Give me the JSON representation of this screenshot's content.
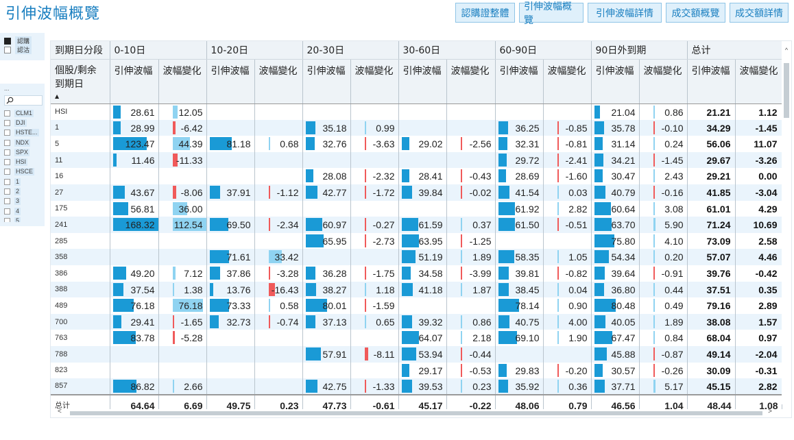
{
  "title": "引伸波幅概覽",
  "nav_buttons": [
    "認購證整體",
    "引伸波幅概覽",
    "引伸波幅詳情",
    "成交額概覽",
    "成交額詳情"
  ],
  "legend": [
    {
      "label": "認購",
      "checked": true
    },
    {
      "label": "認沽",
      "checked": false
    }
  ],
  "filter": {
    "dots": "...",
    "items": [
      "CLM1",
      "DJI",
      "HSTE...",
      "NDX",
      "SPX",
      "HSI",
      "HSCE",
      "1",
      "2",
      "3",
      "4",
      "5"
    ]
  },
  "table": {
    "corner_label": "到期日分段",
    "row_header_label": "個股/剩余\n到期日",
    "groups": [
      "0-10日",
      "10-20日",
      "20-30日",
      "30-60日",
      "60-90日",
      "90日外到期",
      "总计"
    ],
    "sub_headers": [
      "引伸波幅",
      "波幅變化"
    ],
    "rows": [
      {
        "key": "HSI",
        "cells": [
          [
            "28.61",
            "12.05"
          ],
          [
            "",
            ""
          ],
          [
            "",
            ""
          ],
          [
            "",
            ""
          ],
          [
            "",
            ""
          ],
          [
            "21.04",
            "0.86"
          ]
        ],
        "total": [
          "21.21",
          "1.12"
        ]
      },
      {
        "key": "1",
        "cells": [
          [
            "28.99",
            "-6.42"
          ],
          [
            "",
            ""
          ],
          [
            "35.18",
            "0.99"
          ],
          [
            "",
            ""
          ],
          [
            "36.25",
            "-0.85"
          ],
          [
            "35.78",
            "-0.10"
          ]
        ],
        "total": [
          "34.29",
          "-1.45"
        ]
      },
      {
        "key": "5",
        "cells": [
          [
            "123.47",
            "44.39"
          ],
          [
            "81.18",
            "0.68"
          ],
          [
            "32.76",
            "-3.63"
          ],
          [
            "29.02",
            "-2.56"
          ],
          [
            "32.31",
            "-0.81"
          ],
          [
            "31.14",
            "0.24"
          ]
        ],
        "total": [
          "56.06",
          "11.07"
        ]
      },
      {
        "key": "11",
        "cells": [
          [
            "11.46",
            "-11.33"
          ],
          [
            "",
            ""
          ],
          [
            "",
            ""
          ],
          [
            "",
            ""
          ],
          [
            "29.72",
            "-2.41"
          ],
          [
            "34.21",
            "-1.45"
          ]
        ],
        "total": [
          "29.67",
          "-3.26"
        ]
      },
      {
        "key": "16",
        "cells": [
          [
            "",
            ""
          ],
          [
            "",
            ""
          ],
          [
            "28.08",
            "-2.32"
          ],
          [
            "28.41",
            "-0.43"
          ],
          [
            "28.69",
            "-1.60"
          ],
          [
            "30.47",
            "2.43"
          ]
        ],
        "total": [
          "29.21",
          "0.00"
        ]
      },
      {
        "key": "27",
        "cells": [
          [
            "43.67",
            "-8.06"
          ],
          [
            "37.91",
            "-1.12"
          ],
          [
            "42.77",
            "-1.72"
          ],
          [
            "39.84",
            "-0.02"
          ],
          [
            "41.54",
            "0.03"
          ],
          [
            "40.79",
            "-0.16"
          ]
        ],
        "total": [
          "41.85",
          "-3.04"
        ]
      },
      {
        "key": "175",
        "cells": [
          [
            "56.81",
            "36.00"
          ],
          [
            "",
            ""
          ],
          [
            "",
            ""
          ],
          [
            "",
            ""
          ],
          [
            "61.92",
            "2.82"
          ],
          [
            "60.64",
            "3.08"
          ]
        ],
        "total": [
          "61.01",
          "4.29"
        ]
      },
      {
        "key": "241",
        "cells": [
          [
            "168.32",
            "112.54"
          ],
          [
            "69.50",
            "-2.34"
          ],
          [
            "60.97",
            "-0.27"
          ],
          [
            "61.59",
            "0.37"
          ],
          [
            "61.50",
            "-0.51"
          ],
          [
            "63.70",
            "5.90"
          ]
        ],
        "total": [
          "71.24",
          "10.69"
        ]
      },
      {
        "key": "285",
        "cells": [
          [
            "",
            ""
          ],
          [
            "",
            ""
          ],
          [
            "65.95",
            "-2.73"
          ],
          [
            "63.95",
            "-1.25"
          ],
          [
            "",
            ""
          ],
          [
            "75.80",
            "4.10"
          ]
        ],
        "total": [
          "73.09",
          "2.58"
        ]
      },
      {
        "key": "358",
        "cells": [
          [
            "",
            ""
          ],
          [
            "71.61",
            "33.42"
          ],
          [
            "",
            ""
          ],
          [
            "51.19",
            "1.89"
          ],
          [
            "58.35",
            "1.05"
          ],
          [
            "54.34",
            "0.20"
          ]
        ],
        "total": [
          "57.07",
          "4.46"
        ]
      },
      {
        "key": "386",
        "cells": [
          [
            "49.20",
            "7.12"
          ],
          [
            "37.86",
            "-3.28"
          ],
          [
            "36.28",
            "-1.75"
          ],
          [
            "34.58",
            "-3.99"
          ],
          [
            "39.81",
            "-0.82"
          ],
          [
            "39.64",
            "-0.91"
          ]
        ],
        "total": [
          "39.76",
          "-0.42"
        ]
      },
      {
        "key": "388",
        "cells": [
          [
            "37.54",
            "1.38"
          ],
          [
            "13.76",
            "-16.43"
          ],
          [
            "38.27",
            "1.18"
          ],
          [
            "41.18",
            "1.87"
          ],
          [
            "38.45",
            "0.04"
          ],
          [
            "36.80",
            "0.44"
          ]
        ],
        "total": [
          "37.51",
          "0.35"
        ]
      },
      {
        "key": "489",
        "cells": [
          [
            "76.18",
            "76.18"
          ],
          [
            "73.33",
            "0.58"
          ],
          [
            "80.01",
            "-1.59"
          ],
          [
            "",
            ""
          ],
          [
            "78.14",
            "0.90"
          ],
          [
            "80.48",
            "0.49"
          ]
        ],
        "total": [
          "79.16",
          "2.89"
        ]
      },
      {
        "key": "700",
        "cells": [
          [
            "29.41",
            "-1.65"
          ],
          [
            "32.73",
            "-0.74"
          ],
          [
            "37.13",
            "0.65"
          ],
          [
            "39.32",
            "0.86"
          ],
          [
            "40.75",
            "4.00"
          ],
          [
            "40.05",
            "1.89"
          ]
        ],
        "total": [
          "38.08",
          "1.57"
        ]
      },
      {
        "key": "763",
        "cells": [
          [
            "83.78",
            "-5.28"
          ],
          [
            "",
            ""
          ],
          [
            "",
            ""
          ],
          [
            "64.07",
            "2.18"
          ],
          [
            "69.10",
            "1.90"
          ],
          [
            "67.47",
            "0.84"
          ]
        ],
        "total": [
          "68.04",
          "0.97"
        ]
      },
      {
        "key": "788",
        "cells": [
          [
            "",
            ""
          ],
          [
            "",
            ""
          ],
          [
            "57.91",
            "-8.11"
          ],
          [
            "53.94",
            "-0.44"
          ],
          [
            "",
            ""
          ],
          [
            "45.88",
            "-0.87"
          ]
        ],
        "total": [
          "49.14",
          "-2.04"
        ]
      },
      {
        "key": "823",
        "cells": [
          [
            "",
            ""
          ],
          [
            "",
            ""
          ],
          [
            "",
            ""
          ],
          [
            "29.17",
            "-0.53"
          ],
          [
            "29.83",
            "-0.20"
          ],
          [
            "30.57",
            "-0.26"
          ]
        ],
        "total": [
          "30.09",
          "-0.31"
        ]
      },
      {
        "key": "857",
        "cells": [
          [
            "86.82",
            "2.66"
          ],
          [
            "",
            ""
          ],
          [
            "42.75",
            "-1.33"
          ],
          [
            "39.53",
            "0.23"
          ],
          [
            "35.92",
            "0.36"
          ],
          [
            "37.71",
            "5.17"
          ]
        ],
        "total": [
          "45.15",
          "2.82"
        ]
      }
    ],
    "footer": {
      "key": "总计",
      "cells": [
        [
          "64.64",
          "6.69"
        ],
        [
          "49.75",
          "0.23"
        ],
        [
          "47.73",
          "-0.61"
        ],
        [
          "45.17",
          "-0.22"
        ],
        [
          "48.06",
          "0.79"
        ],
        [
          "46.56",
          "1.04"
        ]
      ],
      "total": [
        "48.44",
        "1.08"
      ]
    }
  },
  "colors": {
    "accent": "#1a7fc0",
    "bar": "#1a9ad6",
    "bar_light": "#8fd3f1",
    "negative": "#f05a5a",
    "row_alt": "#eaf4fc"
  }
}
